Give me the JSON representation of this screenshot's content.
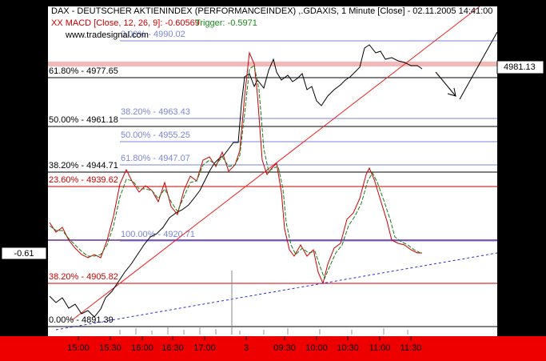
{
  "header": {
    "title": "DAX - DEUTSCHER AKTIENINDEX (PERFORMANCEINDEX) ,.GDAXIS, 1 Minute [Close] - 02.11.2005 14:41:00",
    "indicator": "XX MACD [Close, 12, 26, 9]: -0.60569",
    "trigger": "Trigger: -0.5971",
    "watermark": "www.tradesignal.com"
  },
  "levels": [
    {
      "label": "0.00% - 4990.02",
      "color": "#7b86d9"
    },
    {
      "label": "61.80% - 4977.65",
      "color": "#000000"
    },
    {
      "label": "38.20% - 4963.43",
      "color": "#7b86d9"
    },
    {
      "label": "50.00% - 4961.18",
      "color": "#000000"
    },
    {
      "label": "50.00% - 4955.25",
      "color": "#7b86d9"
    },
    {
      "label": "61.80% - 4947.07",
      "color": "#7b86d9"
    },
    {
      "label": "38.20% - 4944.71",
      "color": "#000000"
    },
    {
      "label": "23.60% - 4939.62",
      "color": "#cc0000"
    },
    {
      "label": "100.00% - 4920.71",
      "color": "#7b86d9"
    },
    {
      "label": "38.20% - 4905.82",
      "color": "#cc0000"
    },
    {
      "label": "0.00% - 4891.39",
      "color": "#000000"
    }
  ],
  "price_label": "4981.13",
  "macd_label": "-0.61",
  "time_labels": [
    "15:00",
    "15:30",
    "16:00",
    "16:30",
    "17:00",
    "3",
    "09:30",
    "10:00",
    "10:30",
    "11:00",
    "11:30"
  ]
}
